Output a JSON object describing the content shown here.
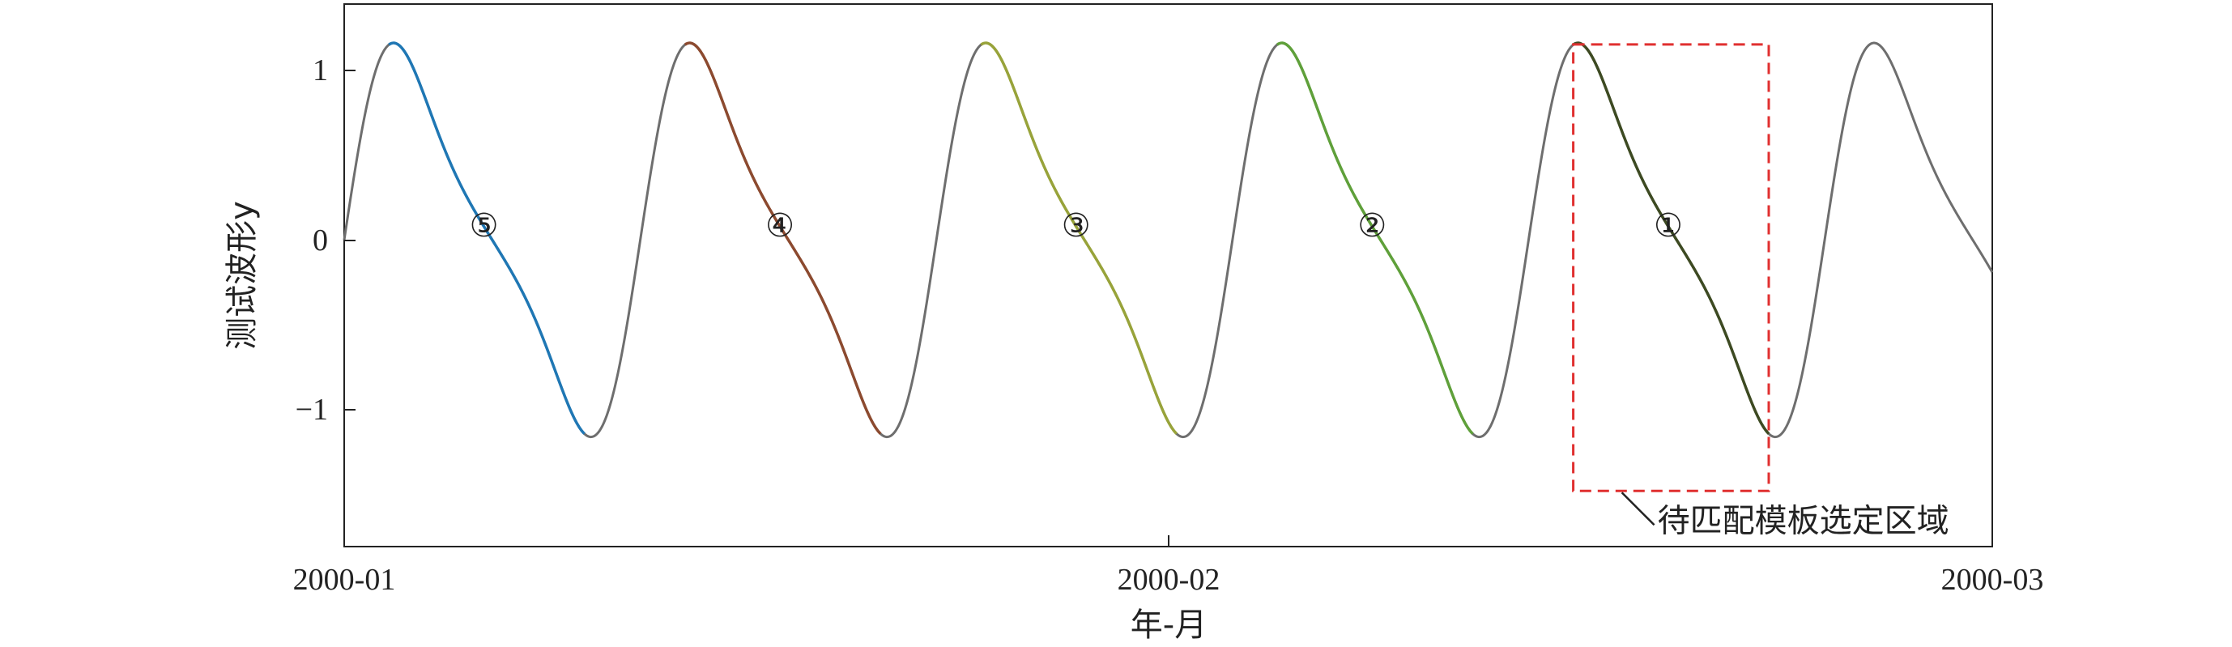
{
  "chart_data": {
    "type": "line",
    "xlabel": "年-月",
    "ylabel": "测试波形y",
    "x_ticks": [
      "2000-01",
      "2000-02",
      "2000-03"
    ],
    "y_ticks": [
      "1",
      "0",
      "−1"
    ],
    "x_range_days": [
      0,
      59
    ],
    "ylim": [
      -1.82,
      1.4
    ],
    "signal": {
      "start": 0,
      "end": 59,
      "period": 10.6,
      "formula": "sin + 0.35·sin(2x) + 0.05·sin(3x)",
      "base_color": "#6e6e6e"
    },
    "segments": [
      {
        "label": "⑤",
        "start": 1.6,
        "end": 8.6,
        "color": "#1f77b4"
      },
      {
        "label": "④",
        "start": 12.2,
        "end": 19.2,
        "color": "#8c4a2f"
      },
      {
        "label": "③",
        "start": 22.8,
        "end": 29.8,
        "color": "#98a33a"
      },
      {
        "label": "②",
        "start": 33.4,
        "end": 40.4,
        "color": "#5fa03a"
      },
      {
        "label": "①",
        "start": 44.0,
        "end": 51.0,
        "color": "#3d4a22"
      }
    ],
    "region": {
      "label": "待匹配模板选定区域",
      "x0": 44.0,
      "x1": 51.0,
      "y0": -1.49,
      "y1": 1.16,
      "color": "#e03030"
    }
  }
}
